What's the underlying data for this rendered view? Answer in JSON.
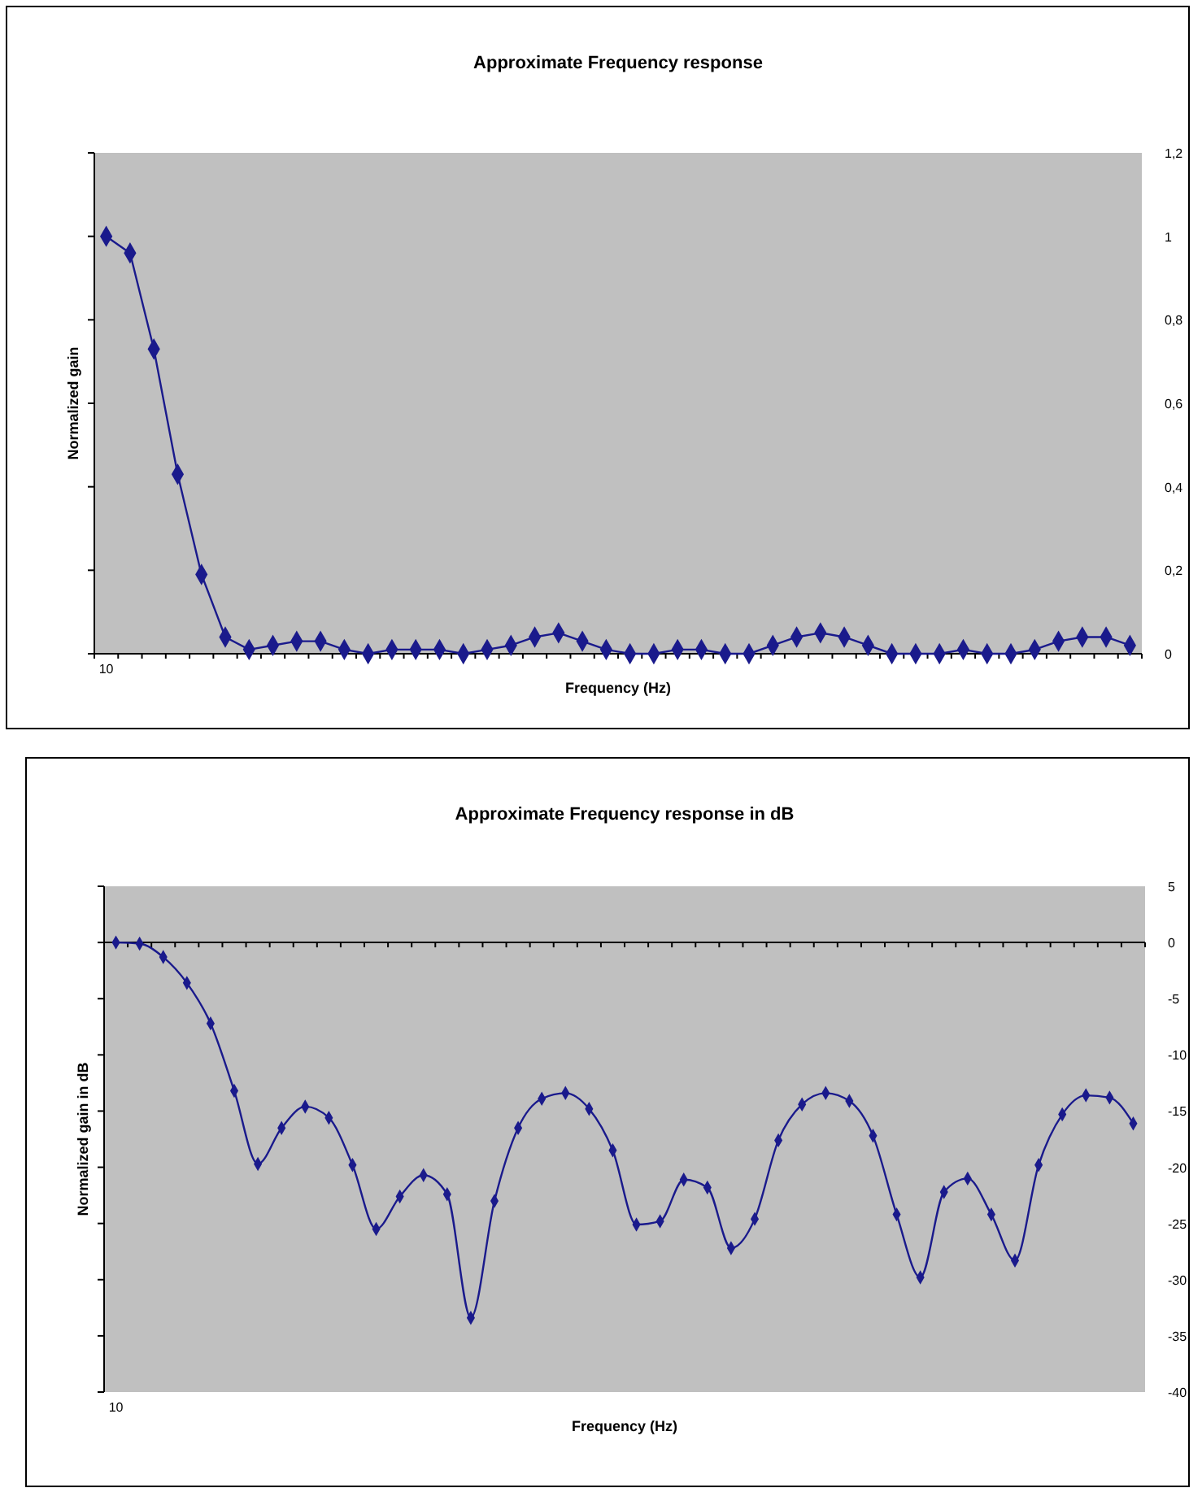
{
  "chart_data": [
    {
      "type": "line",
      "title": "Approximate Frequency response",
      "xlabel": "Frequency (Hz)",
      "ylabel": "Normalized gain",
      "categories": [
        "10",
        null,
        null,
        null,
        null,
        null,
        null,
        null,
        null,
        null,
        null,
        null,
        null,
        null,
        null,
        null,
        null,
        null,
        null,
        null,
        null,
        null,
        null,
        null,
        null,
        null,
        null,
        null,
        null,
        null,
        null,
        null,
        null,
        null,
        null,
        null,
        null,
        null,
        null,
        null,
        null,
        null,
        null,
        null
      ],
      "series": [
        {
          "color": "#1a1a8c",
          "values": [
            1.0,
            0.96,
            0.73,
            0.43,
            0.19,
            0.04,
            0.01,
            0.02,
            0.03,
            0.03,
            0.01,
            0,
            0.01,
            0.01,
            0.01,
            0,
            0.01,
            0.02,
            0.04,
            0.05,
            0.03,
            0.01,
            0,
            0,
            0.01,
            0.01,
            0,
            0,
            0.02,
            0.04,
            0.05,
            0.04,
            0.02,
            0,
            0,
            0,
            0.01,
            0,
            0,
            0.01,
            0.03,
            0.04,
            0.04,
            0.02
          ]
        }
      ],
      "ylim": [
        0,
        1.2
      ],
      "yticks": [
        0,
        {
          "value": 0.2,
          "label": "0,2"
        },
        {
          "value": 0.4,
          "label": "0,4"
        },
        {
          "value": 0.6,
          "label": "0,6"
        },
        {
          "value": 0.8,
          "label": "0,8"
        },
        1,
        {
          "value": 1.2,
          "label": "1,2"
        }
      ],
      "marker": "diamond",
      "line_style": "solid"
    },
    {
      "type": "line",
      "title": "Approximate Frequency response in dB",
      "xlabel": "Frequency (Hz)",
      "ylabel": "Normalized gain in dB",
      "categories": [
        "10",
        null,
        null,
        null,
        null,
        null,
        null,
        null,
        null,
        null,
        null,
        null,
        null,
        null,
        null,
        null,
        null,
        null,
        null,
        null,
        null,
        null,
        null,
        null,
        null,
        null,
        null,
        null,
        null,
        null,
        null,
        null,
        null,
        null,
        null,
        null,
        null,
        null,
        null,
        null,
        null,
        null,
        null,
        null
      ],
      "series": [
        {
          "color": "#1a1a8c",
          "values": [
            0,
            -0.1,
            -1.3,
            -3.6,
            -7.2,
            -13.2,
            -19.7,
            -16.5,
            -14.6,
            -15.6,
            -19.8,
            -25.5,
            -22.6,
            -20.7,
            -22.4,
            -33.4,
            -23.0,
            -16.5,
            -13.9,
            -13.4,
            -14.8,
            -18.5,
            -25.1,
            -24.8,
            -21.1,
            -21.8,
            -27.2,
            -24.6,
            -17.6,
            -14.4,
            -13.4,
            -14.1,
            -17.2,
            -24.2,
            -29.8,
            -22.2,
            -21.0,
            -24.2,
            -28.3,
            -19.8,
            -15.3,
            -13.6,
            -13.8,
            -16.1
          ]
        }
      ],
      "ylim": [
        -40,
        5
      ],
      "yticks": [
        -40,
        -35,
        -30,
        -25,
        -20,
        -15,
        -10,
        -5,
        0,
        5
      ],
      "marker": "diamond",
      "line_style": "solid"
    }
  ]
}
